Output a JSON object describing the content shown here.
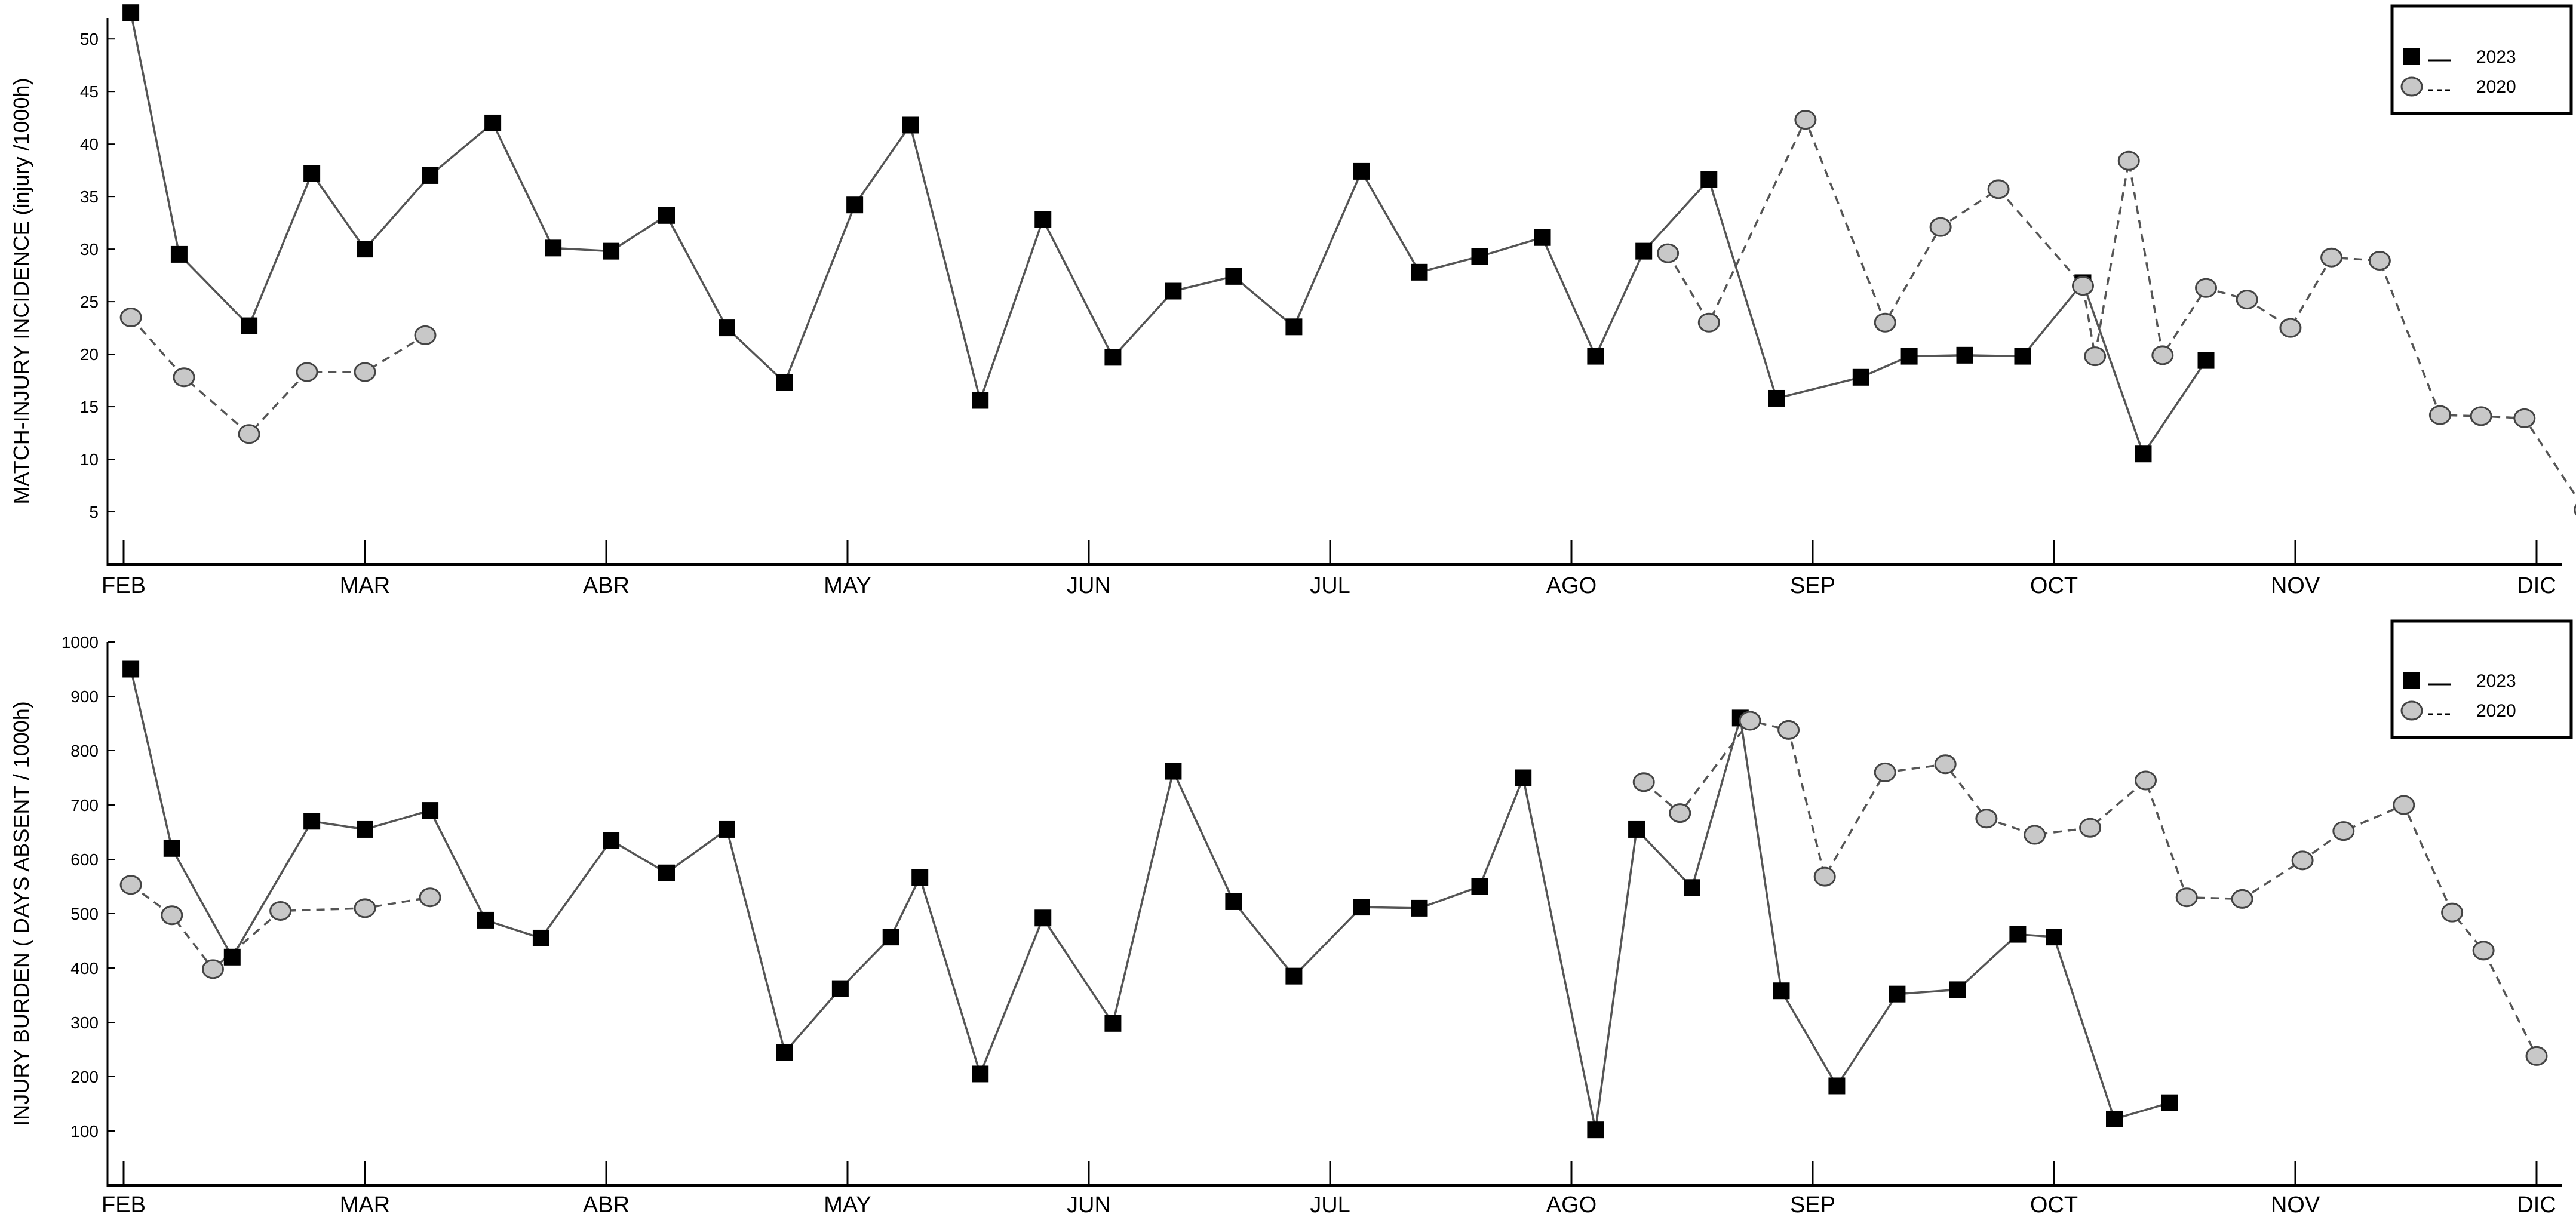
{
  "chart_data": [
    {
      "type": "line",
      "title": "",
      "ylabel": "MATCH-INJURY INCIDENCE (injury /1000h)",
      "xlabel": "",
      "ylim": [
        0,
        52
      ],
      "yticks": [
        5,
        10,
        15,
        20,
        25,
        30,
        35,
        40,
        45,
        50
      ],
      "xlim": [
        0,
        10
      ],
      "xticks": [
        {
          "label": "FEB",
          "x": 0
        },
        {
          "label": "MAR",
          "x": 1
        },
        {
          "label": "ABR",
          "x": 2
        },
        {
          "label": "MAY",
          "x": 3
        },
        {
          "label": "JUN",
          "x": 4
        },
        {
          "label": "JUL",
          "x": 5
        },
        {
          "label": "AGO",
          "x": 6
        },
        {
          "label": "SEP",
          "x": 7
        },
        {
          "label": "OCT",
          "x": 8
        },
        {
          "label": "NOV",
          "x": 9
        },
        {
          "label": "DIC",
          "x": 10
        }
      ],
      "legend_position": "top-right",
      "series": [
        {
          "name": "2023",
          "marker": "square",
          "line": "solid",
          "color": "#000000",
          "line_color": "#555555",
          "points": [
            [
              0.03,
              52.5
            ],
            [
              0.23,
              29.5
            ],
            [
              0.52,
              22.7
            ],
            [
              0.78,
              37.2
            ],
            [
              1.0,
              30.0
            ],
            [
              1.27,
              37.0
            ],
            [
              1.53,
              42.0
            ],
            [
              1.78,
              30.1
            ],
            [
              2.02,
              29.8
            ],
            [
              2.25,
              33.2
            ],
            [
              2.5,
              22.5
            ],
            [
              2.74,
              17.3
            ],
            [
              3.03,
              34.2
            ],
            [
              3.26,
              41.8
            ],
            [
              3.55,
              15.6
            ],
            [
              3.81,
              32.8
            ],
            [
              4.1,
              19.7
            ],
            [
              4.35,
              26.0
            ],
            [
              4.6,
              27.4
            ],
            [
              4.85,
              22.6
            ],
            [
              5.13,
              37.4
            ],
            [
              5.37,
              27.8
            ],
            [
              5.62,
              29.3
            ],
            [
              5.88,
              31.1
            ],
            [
              6.1,
              19.8
            ],
            [
              6.3,
              29.8
            ],
            [
              6.57,
              36.6
            ],
            [
              6.85,
              15.8
            ],
            [
              7.2,
              17.8
            ],
            [
              7.4,
              19.8
            ],
            [
              7.63,
              19.9
            ],
            [
              7.87,
              19.8
            ],
            [
              8.12,
              26.8
            ],
            [
              8.37,
              10.5
            ],
            [
              8.63,
              19.4
            ]
          ]
        },
        {
          "name": "2020",
          "marker": "circle",
          "line": "dashed",
          "color": "#c8c8c8",
          "line_color": "#555555",
          "segments": [
            [
              [
                0.03,
                23.5
              ],
              [
                0.25,
                17.8
              ],
              [
                0.52,
                12.4
              ],
              [
                0.76,
                18.3
              ],
              [
                1.0,
                18.3
              ],
              [
                1.25,
                21.8
              ]
            ],
            [
              [
                6.4,
                29.6
              ],
              [
                6.57,
                23.0
              ],
              [
                6.97,
                42.3
              ],
              [
                7.3,
                23.0
              ],
              [
                7.53,
                32.1
              ],
              [
                7.77,
                35.7
              ],
              [
                8.12,
                26.5
              ],
              [
                8.17,
                19.8
              ],
              [
                8.31,
                38.4
              ],
              [
                8.45,
                19.9
              ],
              [
                8.63,
                26.3
              ],
              [
                8.8,
                25.2
              ],
              [
                8.98,
                22.5
              ],
              [
                9.15,
                29.2
              ],
              [
                9.35,
                28.9
              ],
              [
                9.6,
                14.2
              ],
              [
                9.77,
                14.1
              ],
              [
                9.95,
                13.9
              ],
              [
                10.2,
                5.2
              ]
            ]
          ]
        }
      ]
    },
    {
      "type": "line",
      "title": "",
      "ylabel": "INJURY BURDEN  ( DAYS ABSENT / 1000h)",
      "xlabel": "",
      "ylim": [
        0,
        1000
      ],
      "yticks": [
        100,
        200,
        300,
        400,
        500,
        600,
        700,
        800,
        900,
        1000
      ],
      "xlim": [
        0,
        10
      ],
      "xticks": [
        {
          "label": "FEB",
          "x": 0
        },
        {
          "label": "MAR",
          "x": 1
        },
        {
          "label": "ABR",
          "x": 2
        },
        {
          "label": "MAY",
          "x": 3
        },
        {
          "label": "JUN",
          "x": 4
        },
        {
          "label": "JUL",
          "x": 5
        },
        {
          "label": "AGO",
          "x": 6
        },
        {
          "label": "SEP",
          "x": 7
        },
        {
          "label": "OCT",
          "x": 8
        },
        {
          "label": "NOV",
          "x": 9
        },
        {
          "label": "DIC",
          "x": 10
        }
      ],
      "legend_position": "top-right",
      "series": [
        {
          "name": "2023",
          "marker": "square",
          "line": "solid",
          "color": "#000000",
          "line_color": "#555555",
          "points": [
            [
              0.03,
              950
            ],
            [
              0.2,
              620
            ],
            [
              0.45,
              420
            ],
            [
              0.78,
              670
            ],
            [
              1.0,
              655
            ],
            [
              1.27,
              690
            ],
            [
              1.5,
              488
            ],
            [
              1.73,
              455
            ],
            [
              2.02,
              635
            ],
            [
              2.25,
              575
            ],
            [
              2.5,
              655
            ],
            [
              2.74,
              245
            ],
            [
              2.97,
              362
            ],
            [
              3.18,
              457
            ],
            [
              3.3,
              567
            ],
            [
              3.55,
              205
            ],
            [
              3.81,
              492
            ],
            [
              4.1,
              298
            ],
            [
              4.35,
              762
            ],
            [
              4.6,
              522
            ],
            [
              4.85,
              385
            ],
            [
              5.13,
              512
            ],
            [
              5.37,
              510
            ],
            [
              5.62,
              550
            ],
            [
              5.8,
              750
            ],
            [
              6.1,
              102
            ],
            [
              6.27,
              655
            ],
            [
              6.5,
              548
            ],
            [
              6.7,
              860
            ],
            [
              6.87,
              358
            ],
            [
              7.1,
              183
            ],
            [
              7.35,
              352
            ],
            [
              7.6,
              360
            ],
            [
              7.85,
              462
            ],
            [
              8.0,
              457
            ],
            [
              8.25,
              122
            ],
            [
              8.48,
              152
            ]
          ]
        },
        {
          "name": "2020",
          "marker": "circle",
          "line": "dashed",
          "color": "#c8c8c8",
          "line_color": "#555555",
          "segments": [
            [
              [
                0.03,
                553
              ],
              [
                0.2,
                497
              ],
              [
                0.37,
                398
              ],
              [
                0.65,
                505
              ],
              [
                1.0,
                510
              ],
              [
                1.27,
                530
              ]
            ],
            [
              [
                6.3,
                742
              ],
              [
                6.45,
                685
              ],
              [
                6.74,
                855
              ],
              [
                6.9,
                838
              ],
              [
                7.05,
                568
              ],
              [
                7.3,
                760
              ],
              [
                7.55,
                775
              ],
              [
                7.72,
                675
              ],
              [
                7.92,
                645
              ],
              [
                8.15,
                658
              ],
              [
                8.38,
                745
              ],
              [
                8.55,
                530
              ],
              [
                8.78,
                527
              ],
              [
                9.03,
                598
              ],
              [
                9.2,
                652
              ],
              [
                9.45,
                700
              ],
              [
                9.65,
                502
              ],
              [
                9.78,
                432
              ],
              [
                10.0,
                238
              ]
            ]
          ]
        }
      ]
    }
  ]
}
